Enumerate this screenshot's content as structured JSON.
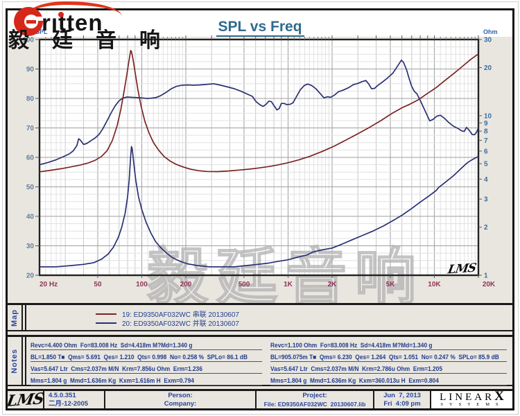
{
  "header": {
    "logo_text": "rıtten",
    "logo_cjk": "毅廷音响",
    "title": "SPL vs Freq"
  },
  "watermark": {
    "text": "毅廷音响"
  },
  "chart_data": {
    "type": "line",
    "title": "SPL vs Freq",
    "corner_label": "LMS",
    "x_axis": {
      "scale": "log",
      "min": 20,
      "max": 20000,
      "unit": "Hz",
      "tick_color": "#8f3457",
      "ticks": [
        {
          "f": 20,
          "label": "20 Hz"
        },
        {
          "f": 50,
          "label": "50"
        },
        {
          "f": 100,
          "label": "100"
        },
        {
          "f": 200,
          "label": "200"
        },
        {
          "f": 500,
          "label": "500"
        },
        {
          "f": 1000,
          "label": "1K"
        },
        {
          "f": 2000,
          "label": "2K"
        },
        {
          "f": 5000,
          "label": "5K"
        },
        {
          "f": 10000,
          "label": "10K"
        },
        {
          "f": 20000,
          "label": "20K"
        }
      ]
    },
    "y_left": {
      "label": "dBSPL",
      "min": 20,
      "max": 100,
      "tick_color": "#5f7f9e",
      "label_color": "#2f62b8",
      "ticks": [
        100,
        90,
        80,
        70,
        60,
        50,
        40,
        30,
        20
      ]
    },
    "y_right": {
      "label": "Ohm",
      "scale": "log",
      "min": 1,
      "max": 30,
      "tick_color": "#3a6fa0",
      "label_color": "#2f62b8",
      "ticks": [
        30,
        20,
        10,
        9,
        8,
        7,
        6,
        5,
        4,
        3,
        2,
        1
      ]
    },
    "grid": {
      "major": "#9f9f9f",
      "minor": "#c9c9c9",
      "fine": "#e1e1e1",
      "bg": "#ffffff",
      "frame": "#222222"
    },
    "series": [
      {
        "id": "spl-curve",
        "name": "SPL response",
        "axis": "left",
        "color": "#283070",
        "points": [
          [
            20,
            57.5
          ],
          [
            23,
            58.3
          ],
          [
            26,
            59.2
          ],
          [
            29,
            60.2
          ],
          [
            32,
            61.2
          ],
          [
            34,
            62.2
          ],
          [
            36,
            64.0
          ],
          [
            37,
            66.3
          ],
          [
            38,
            65.9
          ],
          [
            40,
            64.4
          ],
          [
            42,
            64.7
          ],
          [
            45,
            65.7
          ],
          [
            48,
            66.6
          ],
          [
            51,
            67.8
          ],
          [
            54,
            69.6
          ],
          [
            58,
            72.5
          ],
          [
            62,
            75.3
          ],
          [
            66,
            77.6
          ],
          [
            70,
            79.2
          ],
          [
            74,
            80.1
          ],
          [
            79,
            80.5
          ],
          [
            85,
            80.4
          ],
          [
            92,
            80.3
          ],
          [
            100,
            80.2
          ],
          [
            108,
            80.0
          ],
          [
            116,
            80.1
          ],
          [
            125,
            80.3
          ],
          [
            134,
            80.9
          ],
          [
            145,
            81.9
          ],
          [
            158,
            83.2
          ],
          [
            172,
            84.1
          ],
          [
            188,
            84.5
          ],
          [
            205,
            84.6
          ],
          [
            225,
            84.5
          ],
          [
            250,
            84.6
          ],
          [
            280,
            84.8
          ],
          [
            310,
            85.0
          ],
          [
            340,
            84.6
          ],
          [
            380,
            84.0
          ],
          [
            430,
            83.3
          ],
          [
            480,
            82.4
          ],
          [
            530,
            81.4
          ],
          [
            570,
            80.7
          ],
          [
            605,
            78.9
          ],
          [
            640,
            77.9
          ],
          [
            675,
            77.3
          ],
          [
            710,
            78.1
          ],
          [
            740,
            79.1
          ],
          [
            770,
            78.9
          ],
          [
            805,
            77.4
          ],
          [
            840,
            76.1
          ],
          [
            870,
            76.6
          ],
          [
            900,
            78.3
          ],
          [
            940,
            78.3
          ],
          [
            980,
            77.9
          ],
          [
            1030,
            78.0
          ],
          [
            1080,
            78.5
          ],
          [
            1140,
            80.6
          ],
          [
            1210,
            82.9
          ],
          [
            1290,
            84.4
          ],
          [
            1360,
            84.9
          ],
          [
            1450,
            84.4
          ],
          [
            1550,
            83.3
          ],
          [
            1650,
            81.8
          ],
          [
            1760,
            80.2
          ],
          [
            1860,
            80.6
          ],
          [
            1960,
            80.4
          ],
          [
            2070,
            81.1
          ],
          [
            2200,
            82.2
          ],
          [
            2400,
            82.9
          ],
          [
            2600,
            83.7
          ],
          [
            2800,
            84.7
          ],
          [
            3000,
            85.1
          ],
          [
            3200,
            85.7
          ],
          [
            3400,
            86.1
          ],
          [
            3550,
            85.0
          ],
          [
            3720,
            83.3
          ],
          [
            3900,
            83.4
          ],
          [
            4100,
            84.4
          ],
          [
            4400,
            85.5
          ],
          [
            4800,
            87.0
          ],
          [
            5200,
            88.6
          ],
          [
            5600,
            91.0
          ],
          [
            5950,
            93.0
          ],
          [
            6150,
            92.3
          ],
          [
            6450,
            89.8
          ],
          [
            6700,
            87.0
          ],
          [
            7000,
            84.1
          ],
          [
            7300,
            82.4
          ],
          [
            7600,
            81.6
          ],
          [
            8000,
            79.4
          ],
          [
            8600,
            76.0
          ],
          [
            9300,
            72.4
          ],
          [
            9800,
            72.9
          ],
          [
            10400,
            74.0
          ],
          [
            11000,
            74.3
          ],
          [
            11700,
            73.3
          ],
          [
            12500,
            71.9
          ],
          [
            13500,
            70.6
          ],
          [
            14500,
            69.8
          ],
          [
            15400,
            69.0
          ],
          [
            16000,
            68.8
          ],
          [
            16600,
            70.2
          ],
          [
            17300,
            69.2
          ],
          [
            18100,
            67.8
          ],
          [
            18800,
            67.7
          ],
          [
            19400,
            68.5
          ],
          [
            20000,
            70.0
          ]
        ]
      },
      {
        "id": "impedance-19-series",
        "name": "19: ED9350AF032WC 串联 20130607",
        "axis": "right",
        "color": "#7a2322",
        "points": [
          [
            20,
            4.45
          ],
          [
            24,
            4.55
          ],
          [
            28,
            4.65
          ],
          [
            33,
            4.78
          ],
          [
            38,
            4.9
          ],
          [
            43,
            5.05
          ],
          [
            48,
            5.25
          ],
          [
            53,
            5.55
          ],
          [
            58,
            6.05
          ],
          [
            63,
            7.0
          ],
          [
            68,
            8.7
          ],
          [
            72,
            11.0
          ],
          [
            76,
            14.5
          ],
          [
            79,
            18.0
          ],
          [
            81,
            21.0
          ],
          [
            83,
            24.0
          ],
          [
            84,
            25.6
          ],
          [
            85,
            25.2
          ],
          [
            87,
            22.8
          ],
          [
            90,
            18.8
          ],
          [
            94,
            14.6
          ],
          [
            99,
            11.4
          ],
          [
            105,
            9.2
          ],
          [
            112,
            7.8
          ],
          [
            120,
            6.8
          ],
          [
            130,
            6.1
          ],
          [
            142,
            5.55
          ],
          [
            156,
            5.2
          ],
          [
            172,
            4.95
          ],
          [
            190,
            4.78
          ],
          [
            215,
            4.62
          ],
          [
            245,
            4.52
          ],
          [
            280,
            4.47
          ],
          [
            330,
            4.46
          ],
          [
            390,
            4.5
          ],
          [
            460,
            4.56
          ],
          [
            540,
            4.62
          ],
          [
            630,
            4.7
          ],
          [
            740,
            4.8
          ],
          [
            860,
            4.92
          ],
          [
            1000,
            5.07
          ],
          [
            1180,
            5.28
          ],
          [
            1400,
            5.55
          ],
          [
            1700,
            5.95
          ],
          [
            2050,
            6.42
          ],
          [
            2500,
            7.05
          ],
          [
            3000,
            7.7
          ],
          [
            3600,
            8.45
          ],
          [
            4300,
            9.3
          ],
          [
            5100,
            10.3
          ],
          [
            6000,
            11.2
          ],
          [
            6800,
            11.8
          ],
          [
            7800,
            12.6
          ],
          [
            9000,
            13.8
          ],
          [
            10300,
            15.0
          ],
          [
            11800,
            16.6
          ],
          [
            13500,
            18.3
          ],
          [
            15500,
            20.3
          ],
          [
            17600,
            22.4
          ],
          [
            20000,
            24.4
          ]
        ]
      },
      {
        "id": "impedance-20-parallel",
        "name": "20: ED9350AF032WC 并联 20130607",
        "axis": "right",
        "color": "#283070",
        "points": [
          [
            20,
            1.13
          ],
          [
            26,
            1.13
          ],
          [
            33,
            1.15
          ],
          [
            40,
            1.17
          ],
          [
            47,
            1.2
          ],
          [
            53,
            1.26
          ],
          [
            59,
            1.36
          ],
          [
            64,
            1.5
          ],
          [
            69,
            1.72
          ],
          [
            73,
            2.0
          ],
          [
            77,
            2.45
          ],
          [
            80,
            3.1
          ],
          [
            82,
            3.95
          ],
          [
            84,
            5.6
          ],
          [
            85,
            6.4
          ],
          [
            86,
            6.2
          ],
          [
            88,
            5.1
          ],
          [
            91,
            3.95
          ],
          [
            95,
            3.1
          ],
          [
            100,
            2.58
          ],
          [
            107,
            2.15
          ],
          [
            115,
            1.85
          ],
          [
            124,
            1.63
          ],
          [
            134,
            1.5
          ],
          [
            147,
            1.38
          ],
          [
            162,
            1.29
          ],
          [
            180,
            1.23
          ],
          [
            205,
            1.18
          ],
          [
            240,
            1.15
          ],
          [
            290,
            1.13
          ],
          [
            350,
            1.13
          ],
          [
            430,
            1.13
          ],
          [
            520,
            1.15
          ],
          [
            620,
            1.17
          ],
          [
            730,
            1.19
          ],
          [
            850,
            1.22
          ],
          [
            1000,
            1.25
          ],
          [
            1170,
            1.3
          ],
          [
            1350,
            1.34
          ],
          [
            1480,
            1.4
          ],
          [
            1700,
            1.44
          ],
          [
            2000,
            1.48
          ],
          [
            2350,
            1.57
          ],
          [
            2750,
            1.67
          ],
          [
            3200,
            1.77
          ],
          [
            3850,
            1.9
          ],
          [
            4500,
            2.04
          ],
          [
            5300,
            2.22
          ],
          [
            6100,
            2.4
          ],
          [
            7000,
            2.62
          ],
          [
            8000,
            2.87
          ],
          [
            9100,
            3.12
          ],
          [
            10300,
            3.4
          ],
          [
            10700,
            3.55
          ],
          [
            12000,
            3.85
          ],
          [
            13500,
            4.2
          ],
          [
            15000,
            4.6
          ],
          [
            16300,
            4.95
          ],
          [
            17000,
            5.1
          ],
          [
            18000,
            5.28
          ],
          [
            19000,
            5.42
          ],
          [
            20000,
            5.55
          ]
        ]
      }
    ]
  },
  "map": {
    "tab": "Map",
    "entries": [
      {
        "label": "19: ED9350AF032WC 串联 20130607",
        "color": "#7a2322"
      },
      {
        "label": "20: ED9350AF032WC 并联 20130607",
        "color": "#283070"
      }
    ]
  },
  "notes": {
    "tab": "Notes",
    "left": [
      "Revc=4.400 Ohm  Fo=83.008 Hz  Sd=4.418m M?Md=1.340 g",
      "BL=1.850 T■  Qms= 5.691  Qes= 1.210  Qts= 0.998  No= 0.258 %  SPLo= 86.1 dB",
      "Vas=5.647 Ltr  Cms=2.037m M/N  Krm=7.856u Ohm  Erm=1.236",
      "Mms=1.804 g  Mmd=1.636m Kg  Kxm=1.616m H  Exm=0.794"
    ],
    "right": [
      "Revc=1.100 Ohm  Fo=83.008 Hz  Sd=4.418m M?Md=1.340 g",
      "BL=905.075m T■  Qms= 6.230  Qes= 1.264  Qts= 1.051  No= 0.247 %  SPLo= 85.9 dB",
      "Vas=5.647 Ltr  Cms=2.037m M/N  Krm=2.786u Ohm  Erm=1.205",
      "Mms=1.804 g  Mmd=1.636m Kg  Kxm=360.013u H  Exm=0.804"
    ]
  },
  "footer": {
    "lms": "LMS",
    "version": "4.5.0.351",
    "version_date": "二月-12-2005",
    "person_label": "Person:",
    "company_label": "Company:",
    "project_label": "Project:",
    "file_label": "File: ED9350AF032WC  20130607.lib",
    "date": "Jun  7, 2013",
    "time": "Fri  4:09 pm",
    "brand_main": "LINEAR",
    "brand_x": "X",
    "brand_sub": "SYSTEMS"
  }
}
